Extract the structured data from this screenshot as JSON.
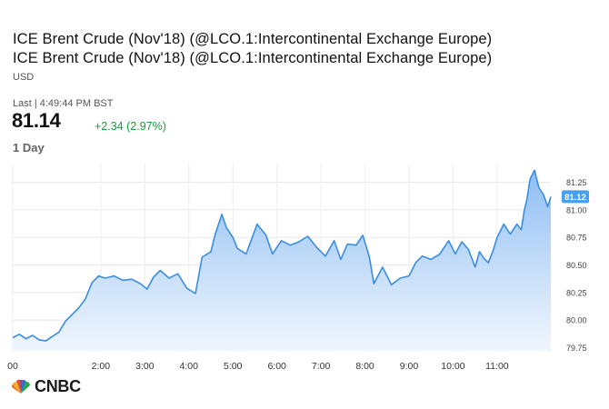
{
  "header": {
    "title_line1": "ICE Brent Crude (Nov'18) (@LCO.1:Intercontinental Exchange Europe)",
    "title_line2": "ICE Brent Crude (Nov'18) (@LCO.1:Intercontinental Exchange Europe)",
    "currency": "USD",
    "last_label": "Last | 4:49:44 PM BST",
    "price": "81.14",
    "change": "+2.34 (2.97%)",
    "period": "1 Day"
  },
  "colors": {
    "line": "#3a8de0",
    "fill_top": "#8dbdf3",
    "fill_bottom": "#eef5fd",
    "change_positive": "#1b9c3a",
    "current_badge": "#4aa0ee"
  },
  "footer": {
    "logo_text": "CNBC"
  },
  "chart_data": {
    "type": "area",
    "title": "",
    "xlabel": "",
    "ylabel": "",
    "x_ticks": [
      "00",
      "2:00",
      "3:00",
      "4:00",
      "5:00",
      "6:00",
      "7:00",
      "8:00",
      "9:00",
      "10:00",
      "11:00"
    ],
    "y_ticks": [
      "81.25",
      "81.00",
      "80.75",
      "80.50",
      "80.25",
      "80.00",
      "79.75"
    ],
    "ylim": [
      79.72,
      81.42
    ],
    "grid": true,
    "current_label": "81.12",
    "series": [
      {
        "x": [
          0.0,
          0.15,
          0.3,
          0.45,
          0.6,
          0.75,
          0.9,
          1.05,
          1.2,
          1.35,
          1.5,
          1.65,
          1.8,
          1.95,
          2.1,
          2.3,
          2.5,
          2.7,
          2.9,
          3.05,
          3.2,
          3.35,
          3.55,
          3.75,
          3.95,
          4.15,
          4.3,
          4.5,
          4.6,
          4.75,
          4.85,
          5.0,
          5.1,
          5.3,
          5.55,
          5.75,
          5.9,
          6.1,
          6.3,
          6.5,
          6.7,
          6.9,
          7.1,
          7.3,
          7.45,
          7.6,
          7.8,
          7.95,
          8.1,
          8.2,
          8.4,
          8.6,
          8.8,
          9.0,
          9.15,
          9.3,
          9.5,
          9.7,
          9.9,
          10.05,
          10.2,
          10.35,
          10.5,
          10.6,
          10.7,
          10.8,
          10.9,
          11.0,
          11.15,
          11.3,
          11.45,
          11.55,
          11.62,
          11.68,
          11.75,
          11.85,
          11.95,
          12.05,
          12.15,
          12.22
        ],
        "values": [
          79.84,
          79.87,
          79.83,
          79.86,
          79.82,
          79.81,
          79.85,
          79.89,
          79.99,
          80.05,
          80.11,
          80.19,
          80.34,
          80.4,
          80.38,
          80.4,
          80.36,
          80.37,
          80.33,
          80.28,
          80.39,
          80.45,
          80.38,
          80.42,
          80.29,
          80.24,
          80.57,
          80.62,
          80.78,
          80.96,
          80.84,
          80.75,
          80.65,
          80.6,
          80.87,
          80.77,
          80.6,
          80.72,
          80.68,
          80.71,
          80.76,
          80.66,
          80.58,
          80.72,
          80.55,
          80.69,
          80.68,
          80.77,
          80.57,
          80.33,
          80.48,
          80.32,
          80.38,
          80.4,
          80.52,
          80.58,
          80.55,
          80.6,
          80.72,
          80.6,
          80.71,
          80.64,
          80.48,
          80.62,
          80.56,
          80.52,
          80.62,
          80.75,
          80.87,
          80.78,
          80.87,
          80.82,
          81.0,
          81.1,
          81.28,
          81.36,
          81.2,
          81.14,
          81.03,
          81.12
        ]
      }
    ]
  }
}
